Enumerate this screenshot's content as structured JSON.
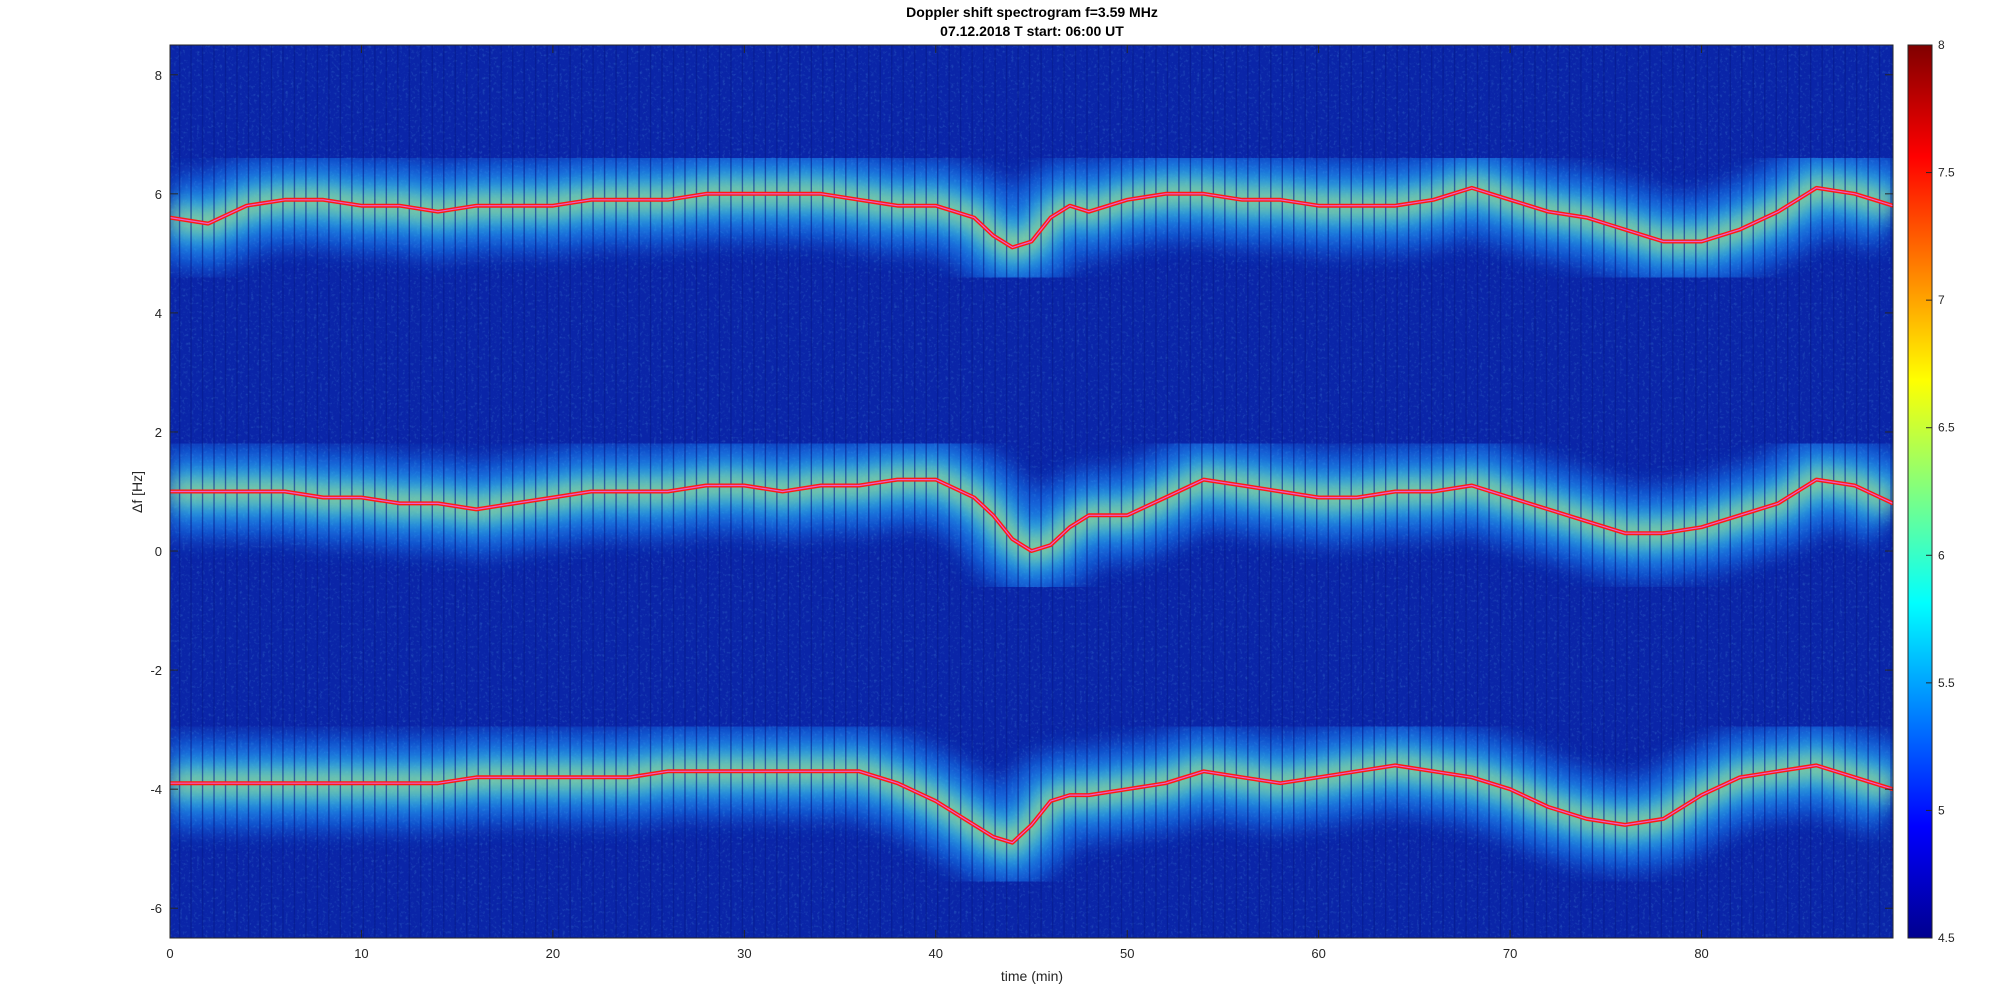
{
  "chart_data": {
    "type": "heatmap",
    "title": "Doppler shift spectrogram f=3.59 MHz",
    "subtitle": "07.12.2018   T start: 06:00 UT",
    "xlabel": "time (min)",
    "ylabel": "Δf [Hz]",
    "xlim": [
      0,
      90
    ],
    "ylim": [
      -6.5,
      8.5
    ],
    "x_ticks": [
      "0",
      "10",
      "20",
      "30",
      "40",
      "50",
      "60",
      "70",
      "80"
    ],
    "y_ticks": [
      "-6",
      "-4",
      "-2",
      "0",
      "2",
      "4",
      "6",
      "8"
    ],
    "colormap": "jet",
    "colorbar": {
      "range": [
        4.5,
        8
      ],
      "ticks": [
        "4.5",
        "5",
        "5.5",
        "6",
        "6.5",
        "7",
        "7.5",
        "8"
      ]
    },
    "grid": false,
    "series": [
      {
        "x": [
          0,
          2,
          4,
          6,
          8,
          10,
          12,
          14,
          16,
          18,
          20,
          22,
          24,
          26,
          28,
          30,
          32,
          34,
          36,
          38,
          40,
          42,
          43,
          44,
          45,
          46,
          47,
          48,
          50,
          52,
          54,
          56,
          58,
          60,
          62,
          64,
          66,
          68,
          70,
          72,
          74,
          76,
          78,
          80,
          82,
          84,
          86,
          88,
          90
        ],
        "y": [
          5.6,
          5.5,
          5.8,
          5.9,
          5.9,
          5.8,
          5.8,
          5.7,
          5.8,
          5.8,
          5.8,
          5.9,
          5.9,
          5.9,
          6.0,
          6.0,
          6.0,
          6.0,
          5.9,
          5.8,
          5.8,
          5.6,
          5.3,
          5.1,
          5.2,
          5.6,
          5.8,
          5.7,
          5.9,
          6.0,
          6.0,
          5.9,
          5.9,
          5.8,
          5.8,
          5.8,
          5.9,
          6.1,
          5.9,
          5.7,
          5.6,
          5.4,
          5.2,
          5.2,
          5.4,
          5.7,
          6.1,
          6.0,
          5.8
        ]
      },
      {
        "x": [
          0,
          2,
          4,
          6,
          8,
          10,
          12,
          14,
          16,
          18,
          20,
          22,
          24,
          26,
          28,
          30,
          32,
          34,
          36,
          38,
          40,
          42,
          43,
          44,
          45,
          46,
          47,
          48,
          50,
          52,
          54,
          56,
          58,
          60,
          62,
          64,
          66,
          68,
          70,
          72,
          74,
          76,
          78,
          80,
          82,
          84,
          86,
          88,
          90
        ],
        "y": [
          1.0,
          1.0,
          1.0,
          1.0,
          0.9,
          0.9,
          0.8,
          0.8,
          0.7,
          0.8,
          0.9,
          1.0,
          1.0,
          1.0,
          1.1,
          1.1,
          1.0,
          1.1,
          1.1,
          1.2,
          1.2,
          0.9,
          0.6,
          0.2,
          0.0,
          0.1,
          0.4,
          0.6,
          0.6,
          0.9,
          1.2,
          1.1,
          1.0,
          0.9,
          0.9,
          1.0,
          1.0,
          1.1,
          0.9,
          0.7,
          0.5,
          0.3,
          0.3,
          0.4,
          0.6,
          0.8,
          1.2,
          1.1,
          0.8
        ]
      },
      {
        "x": [
          0,
          2,
          4,
          6,
          8,
          10,
          12,
          14,
          16,
          18,
          20,
          22,
          24,
          26,
          28,
          30,
          32,
          34,
          36,
          38,
          40,
          42,
          43,
          44,
          45,
          46,
          47,
          48,
          50,
          52,
          54,
          56,
          58,
          60,
          62,
          64,
          66,
          68,
          70,
          72,
          74,
          76,
          78,
          80,
          82,
          84,
          86,
          88,
          90
        ],
        "y": [
          -3.9,
          -3.9,
          -3.9,
          -3.9,
          -3.9,
          -3.9,
          -3.9,
          -3.9,
          -3.8,
          -3.8,
          -3.8,
          -3.8,
          -3.8,
          -3.7,
          -3.7,
          -3.7,
          -3.7,
          -3.7,
          -3.7,
          -3.9,
          -4.2,
          -4.6,
          -4.8,
          -4.9,
          -4.6,
          -4.2,
          -4.1,
          -4.1,
          -4.0,
          -3.9,
          -3.7,
          -3.8,
          -3.9,
          -3.8,
          -3.7,
          -3.6,
          -3.7,
          -3.8,
          -4.0,
          -4.3,
          -4.5,
          -4.6,
          -4.5,
          -4.1,
          -3.8,
          -3.7,
          -3.6,
          -3.8,
          -4.0
        ]
      }
    ]
  }
}
